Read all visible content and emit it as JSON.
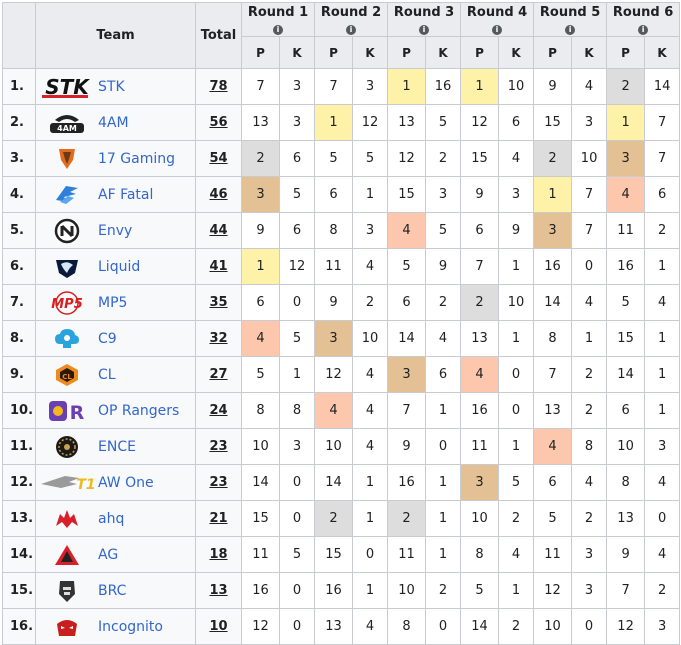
{
  "headers": {
    "team": "Team",
    "total": "Total",
    "rounds": [
      "Round 1",
      "Round 2",
      "Round 3",
      "Round 4",
      "Round 5",
      "Round 6"
    ],
    "placement_col": "P",
    "kills_col": "K"
  },
  "colors": {
    "gold": "#fef1a8",
    "silver": "#dddddd",
    "bronze": "#e3c195",
    "fourth": "#fcc7ad",
    "link": "#3366cc",
    "header_bg": "#eaecf0"
  },
  "teams": [
    {
      "rank": "1.",
      "name": "STK",
      "logo": "stk-logo",
      "total": "78",
      "rounds": [
        {
          "p": "7",
          "k": "3"
        },
        {
          "p": "7",
          "k": "3"
        },
        {
          "p": "1",
          "k": "16"
        },
        {
          "p": "1",
          "k": "10"
        },
        {
          "p": "9",
          "k": "4"
        },
        {
          "p": "2",
          "k": "14"
        }
      ]
    },
    {
      "rank": "2.",
      "name": "4AM",
      "logo": "4am-logo",
      "total": "56",
      "rounds": [
        {
          "p": "13",
          "k": "3"
        },
        {
          "p": "1",
          "k": "12"
        },
        {
          "p": "13",
          "k": "5"
        },
        {
          "p": "12",
          "k": "6"
        },
        {
          "p": "15",
          "k": "3"
        },
        {
          "p": "1",
          "k": "7"
        }
      ]
    },
    {
      "rank": "3.",
      "name": "17 Gaming",
      "logo": "17-gaming-logo",
      "total": "54",
      "rounds": [
        {
          "p": "2",
          "k": "6"
        },
        {
          "p": "5",
          "k": "5"
        },
        {
          "p": "12",
          "k": "2"
        },
        {
          "p": "15",
          "k": "4"
        },
        {
          "p": "2",
          "k": "10"
        },
        {
          "p": "3",
          "k": "7"
        }
      ]
    },
    {
      "rank": "4.",
      "name": "AF Fatal",
      "logo": "af-fatal-logo",
      "total": "46",
      "rounds": [
        {
          "p": "3",
          "k": "5"
        },
        {
          "p": "6",
          "k": "1"
        },
        {
          "p": "15",
          "k": "3"
        },
        {
          "p": "9",
          "k": "3"
        },
        {
          "p": "1",
          "k": "7"
        },
        {
          "p": "4",
          "k": "6"
        }
      ]
    },
    {
      "rank": "5.",
      "name": "Envy",
      "logo": "envy-logo",
      "total": "44",
      "rounds": [
        {
          "p": "9",
          "k": "6"
        },
        {
          "p": "8",
          "k": "3"
        },
        {
          "p": "4",
          "k": "5"
        },
        {
          "p": "6",
          "k": "9"
        },
        {
          "p": "3",
          "k": "7"
        },
        {
          "p": "11",
          "k": "2"
        }
      ]
    },
    {
      "rank": "6.",
      "name": "Liquid",
      "logo": "liquid-logo",
      "total": "41",
      "rounds": [
        {
          "p": "1",
          "k": "12"
        },
        {
          "p": "11",
          "k": "4"
        },
        {
          "p": "5",
          "k": "9"
        },
        {
          "p": "7",
          "k": "1"
        },
        {
          "p": "16",
          "k": "0"
        },
        {
          "p": "16",
          "k": "1"
        }
      ]
    },
    {
      "rank": "7.",
      "name": "MP5",
      "logo": "mp5-logo",
      "total": "35",
      "rounds": [
        {
          "p": "6",
          "k": "0"
        },
        {
          "p": "9",
          "k": "2"
        },
        {
          "p": "6",
          "k": "2"
        },
        {
          "p": "2",
          "k": "10"
        },
        {
          "p": "14",
          "k": "4"
        },
        {
          "p": "5",
          "k": "4"
        }
      ]
    },
    {
      "rank": "8.",
      "name": "C9",
      "logo": "c9-logo",
      "total": "32",
      "rounds": [
        {
          "p": "4",
          "k": "5"
        },
        {
          "p": "3",
          "k": "10"
        },
        {
          "p": "14",
          "k": "4"
        },
        {
          "p": "13",
          "k": "1"
        },
        {
          "p": "8",
          "k": "1"
        },
        {
          "p": "15",
          "k": "1"
        }
      ]
    },
    {
      "rank": "9.",
      "name": "CL",
      "logo": "cl-logo",
      "total": "27",
      "rounds": [
        {
          "p": "5",
          "k": "1"
        },
        {
          "p": "12",
          "k": "4"
        },
        {
          "p": "3",
          "k": "6"
        },
        {
          "p": "4",
          "k": "0"
        },
        {
          "p": "7",
          "k": "2"
        },
        {
          "p": "14",
          "k": "1"
        }
      ]
    },
    {
      "rank": "10.",
      "name": "OP Rangers",
      "logo": "op-rangers-logo",
      "total": "24",
      "rounds": [
        {
          "p": "8",
          "k": "8"
        },
        {
          "p": "4",
          "k": "4"
        },
        {
          "p": "7",
          "k": "1"
        },
        {
          "p": "16",
          "k": "0"
        },
        {
          "p": "13",
          "k": "2"
        },
        {
          "p": "6",
          "k": "1"
        }
      ]
    },
    {
      "rank": "11.",
      "name": "ENCE",
      "logo": "ence-logo",
      "total": "23",
      "rounds": [
        {
          "p": "10",
          "k": "3"
        },
        {
          "p": "10",
          "k": "4"
        },
        {
          "p": "9",
          "k": "0"
        },
        {
          "p": "11",
          "k": "1"
        },
        {
          "p": "4",
          "k": "8"
        },
        {
          "p": "10",
          "k": "3"
        }
      ]
    },
    {
      "rank": "12.",
      "name": "AW One",
      "logo": "aw-one-logo",
      "total": "23",
      "rounds": [
        {
          "p": "14",
          "k": "0"
        },
        {
          "p": "14",
          "k": "1"
        },
        {
          "p": "16",
          "k": "1"
        },
        {
          "p": "3",
          "k": "5"
        },
        {
          "p": "6",
          "k": "4"
        },
        {
          "p": "8",
          "k": "4"
        }
      ]
    },
    {
      "rank": "13.",
      "name": "ahq",
      "logo": "ahq-logo",
      "total": "21",
      "rounds": [
        {
          "p": "15",
          "k": "0"
        },
        {
          "p": "2",
          "k": "1"
        },
        {
          "p": "2",
          "k": "1"
        },
        {
          "p": "10",
          "k": "2"
        },
        {
          "p": "5",
          "k": "2"
        },
        {
          "p": "13",
          "k": "0"
        }
      ]
    },
    {
      "rank": "14.",
      "name": "AG",
      "logo": "ag-logo",
      "total": "18",
      "rounds": [
        {
          "p": "11",
          "k": "5"
        },
        {
          "p": "15",
          "k": "0"
        },
        {
          "p": "11",
          "k": "1"
        },
        {
          "p": "8",
          "k": "4"
        },
        {
          "p": "11",
          "k": "3"
        },
        {
          "p": "9",
          "k": "4"
        }
      ]
    },
    {
      "rank": "15.",
      "name": "BRC",
      "logo": "brc-logo",
      "total": "13",
      "rounds": [
        {
          "p": "16",
          "k": "0"
        },
        {
          "p": "16",
          "k": "1"
        },
        {
          "p": "10",
          "k": "2"
        },
        {
          "p": "5",
          "k": "1"
        },
        {
          "p": "12",
          "k": "3"
        },
        {
          "p": "7",
          "k": "2"
        }
      ]
    },
    {
      "rank": "16.",
      "name": "Incognito",
      "logo": "incognito-logo",
      "total": "10",
      "rounds": [
        {
          "p": "12",
          "k": "0"
        },
        {
          "p": "13",
          "k": "4"
        },
        {
          "p": "8",
          "k": "0"
        },
        {
          "p": "14",
          "k": "2"
        },
        {
          "p": "10",
          "k": "0"
        },
        {
          "p": "12",
          "k": "3"
        }
      ]
    }
  ]
}
